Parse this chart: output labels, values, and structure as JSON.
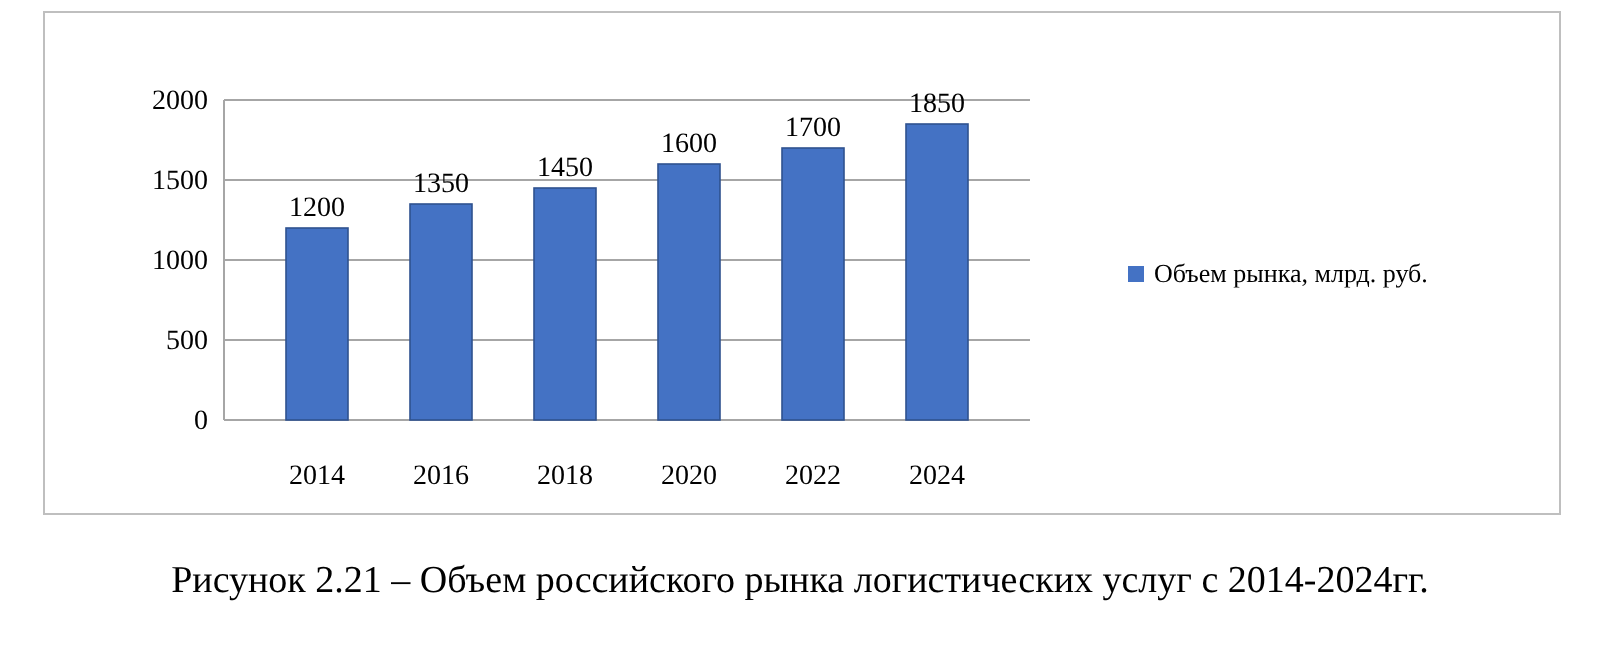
{
  "chart_data": {
    "type": "bar",
    "categories": [
      "2014",
      "2016",
      "2018",
      "2020",
      "2022",
      "2024"
    ],
    "series": [
      {
        "name": "Объем рынка, млрд. руб.",
        "color": "#4472c4",
        "values": [
          1200,
          1350,
          1450,
          1600,
          1700,
          1850
        ]
      }
    ],
    "ylim": [
      0,
      2000
    ],
    "yticks": [
      0,
      500,
      1000,
      1500,
      2000
    ],
    "grid": "y",
    "legend": "right",
    "data_labels": true,
    "annotations": [
      "Рисунок 2.21 – Объем российского рынка логистических услуг с 2014-2024гг."
    ]
  }
}
